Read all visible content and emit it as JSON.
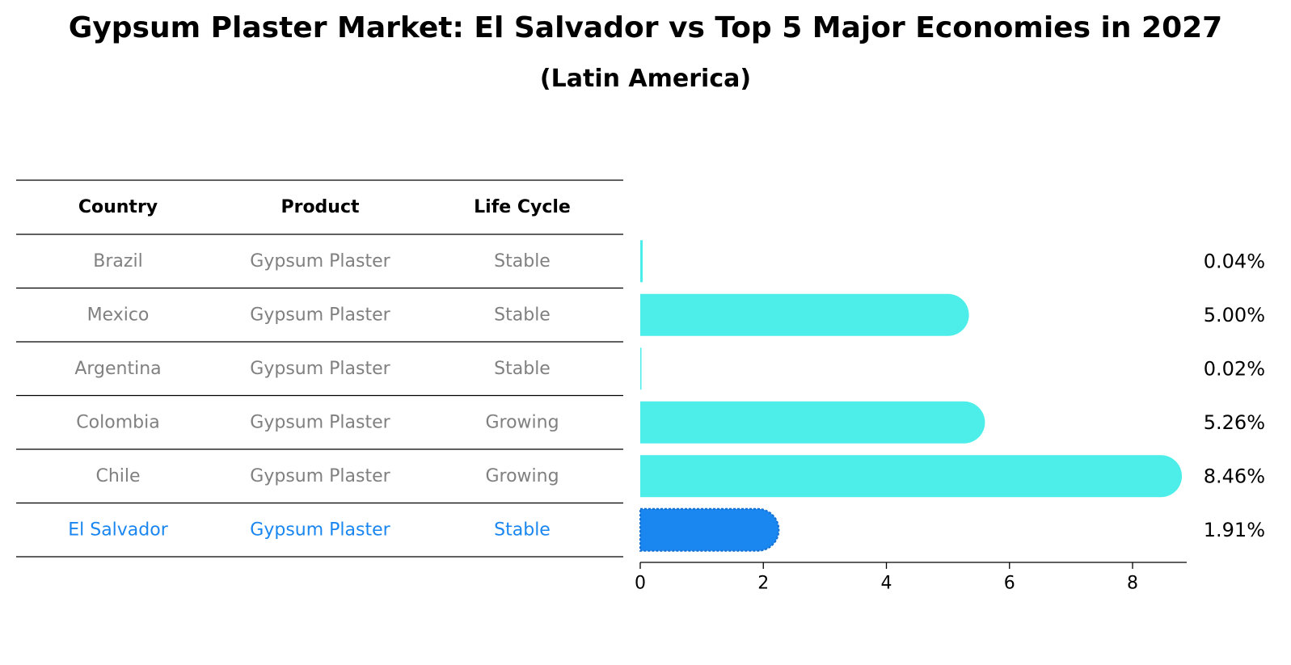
{
  "title": "Gypsum Plaster Market: El Salvador vs Top 5 Major Economies in 2027",
  "subtitle": "(Latin America)",
  "colors": {
    "bar": "#4DEEEA",
    "highlight": "#1A86F0",
    "muted_text": "#808080",
    "rule": "#000000"
  },
  "table": {
    "headers": [
      "Country",
      "Product",
      "Life Cycle"
    ],
    "rows": [
      {
        "country": "Brazil",
        "product": "Gypsum Plaster",
        "life_cycle": "Stable",
        "highlight": false
      },
      {
        "country": "Mexico",
        "product": "Gypsum Plaster",
        "life_cycle": "Stable",
        "highlight": false
      },
      {
        "country": "Argentina",
        "product": "Gypsum Plaster",
        "life_cycle": "Stable",
        "highlight": false
      },
      {
        "country": "Colombia",
        "product": "Gypsum Plaster",
        "life_cycle": "Growing",
        "highlight": false
      },
      {
        "country": "Chile",
        "product": "Gypsum Plaster",
        "life_cycle": "Growing",
        "highlight": false
      },
      {
        "country": "El Salvador",
        "product": "Gypsum Plaster",
        "life_cycle": "Stable",
        "highlight": true
      }
    ]
  },
  "chart_data": {
    "type": "bar",
    "orientation": "horizontal",
    "title": "Gypsum Plaster Market: El Salvador vs Top 5 Major Economies in 2027",
    "subtitle": "(Latin America)",
    "categories": [
      "Brazil",
      "Mexico",
      "Argentina",
      "Colombia",
      "Chile",
      "El Salvador"
    ],
    "values": [
      0.04,
      5.0,
      0.02,
      5.26,
      8.46,
      1.91
    ],
    "value_labels": [
      "0.04%",
      "5.00%",
      "0.02%",
      "5.26%",
      "8.46%",
      "1.91%"
    ],
    "highlight_category": "El Salvador",
    "xlim": [
      0,
      8.88
    ],
    "xticks": [
      0,
      2,
      4,
      6,
      8
    ],
    "xlabel": "",
    "ylabel": "",
    "grid": false,
    "legend": "none"
  }
}
